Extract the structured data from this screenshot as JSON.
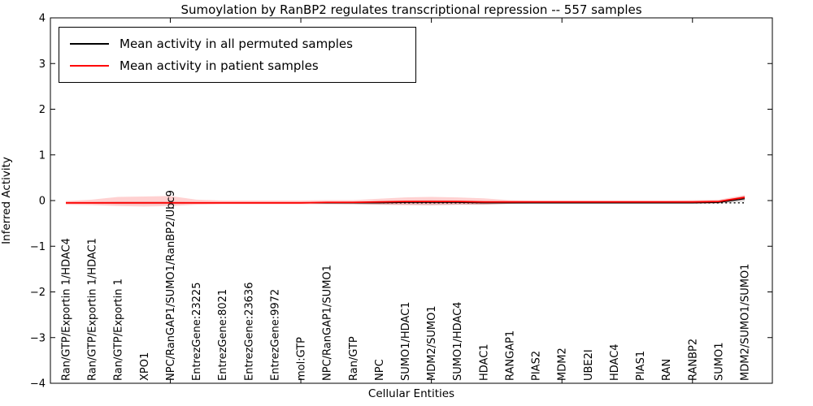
{
  "title": "Sumoylation by RanBP2 regulates transcriptional repression -- 557 samples",
  "legend": {
    "items": [
      {
        "label": "Mean activity in all permuted samples",
        "color": "#000000"
      },
      {
        "label": "Mean activity in patient samples",
        "color": "#ff0000"
      }
    ]
  },
  "axes": {
    "xlabel": "Cellular Entities",
    "ylabel": "Inferred Activity",
    "ylim": [
      -4,
      4
    ],
    "ytick_values": [
      4,
      3,
      2,
      1,
      0,
      -1,
      -2,
      -3,
      -4
    ],
    "ytick_labels": [
      "4",
      "3",
      "2",
      "1",
      "0",
      "−1",
      "−2",
      "−3",
      "−4"
    ],
    "grid": false
  },
  "chart_data": {
    "type": "line",
    "title": "Sumoylation by RanBP2 regulates transcriptional repression -- 557 samples",
    "xlabel": "Cellular Entities",
    "ylabel": "Inferred Activity",
    "ylim": [
      -4,
      4
    ],
    "legend_position": "upper left",
    "x_major_tick_indices": [
      4,
      9,
      14,
      19,
      24
    ],
    "categories": [
      "Ran/GTP/Exportin 1/HDAC4",
      "Ran/GTP/Exportin 1/HDAC1",
      "Ran/GTP/Exportin 1",
      "XPO1",
      "NPC/RanGAP1/SUMO1/RanBP2/Ubc9",
      "EntrezGene:23225",
      "EntrezGene:8021",
      "EntrezGene:23636",
      "EntrezGene:9972",
      "mol:GTP",
      "NPC/RanGAP1/SUMO1",
      "Ran/GTP",
      "NPC",
      "SUMO1/HDAC1",
      "MDM2/SUMO1",
      "SUMO1/HDAC4",
      "HDAC1",
      "RANGAP1",
      "PIAS2",
      "MDM2",
      "UBE2I",
      "HDAC4",
      "PIAS1",
      "RAN",
      "RANBP2",
      "SUMO1",
      "MDM2/SUMO1/SUMO1"
    ],
    "reference_line": {
      "value": -0.05,
      "style": "dotted",
      "color": "#000000"
    },
    "series": [
      {
        "name": "Mean activity in all permuted samples",
        "color": "#000000",
        "line_width": 1.3,
        "band_color": "#999999",
        "band_opacity": 0.35,
        "values": [
          -0.05,
          -0.05,
          -0.05,
          -0.05,
          -0.05,
          -0.05,
          -0.05,
          -0.05,
          -0.05,
          -0.05,
          -0.05,
          -0.05,
          -0.05,
          -0.04,
          -0.04,
          -0.04,
          -0.05,
          -0.05,
          -0.05,
          -0.05,
          -0.05,
          -0.05,
          -0.05,
          -0.05,
          -0.05,
          -0.04,
          0.04
        ],
        "band_upper": [
          -0.03,
          -0.03,
          -0.02,
          -0.02,
          -0.02,
          -0.03,
          -0.03,
          -0.03,
          -0.03,
          -0.03,
          -0.03,
          -0.02,
          -0.01,
          0.0,
          0.01,
          0.0,
          -0.01,
          -0.03,
          -0.03,
          -0.03,
          -0.03,
          -0.03,
          -0.03,
          -0.03,
          -0.03,
          -0.01,
          0.1
        ],
        "band_lower": [
          -0.07,
          -0.07,
          -0.08,
          -0.08,
          -0.08,
          -0.07,
          -0.07,
          -0.07,
          -0.07,
          -0.07,
          -0.07,
          -0.08,
          -0.09,
          -0.09,
          -0.1,
          -0.09,
          -0.09,
          -0.07,
          -0.07,
          -0.07,
          -0.07,
          -0.07,
          -0.07,
          -0.07,
          -0.07,
          -0.07,
          -0.02
        ]
      },
      {
        "name": "Mean activity in patient samples",
        "color": "#ff0000",
        "line_width": 1.8,
        "band_color": "#ff6666",
        "band_opacity": 0.3,
        "values": [
          -0.05,
          -0.05,
          -0.05,
          -0.05,
          -0.05,
          -0.05,
          -0.05,
          -0.05,
          -0.05,
          -0.05,
          -0.04,
          -0.04,
          -0.03,
          -0.02,
          -0.02,
          -0.02,
          -0.03,
          -0.03,
          -0.03,
          -0.03,
          -0.03,
          -0.03,
          -0.03,
          -0.03,
          -0.03,
          -0.02,
          0.07
        ],
        "band_upper": [
          -0.01,
          0.02,
          0.08,
          0.09,
          0.1,
          0.02,
          0.0,
          0.0,
          0.0,
          0.0,
          0.01,
          0.01,
          0.04,
          0.07,
          0.08,
          0.07,
          0.05,
          0.01,
          0.0,
          0.0,
          0.0,
          0.0,
          0.0,
          0.0,
          0.01,
          0.02,
          0.12
        ],
        "band_lower": [
          -0.09,
          -0.1,
          -0.12,
          -0.13,
          -0.12,
          -0.09,
          -0.08,
          -0.08,
          -0.08,
          -0.08,
          -0.08,
          -0.08,
          -0.09,
          -0.1,
          -0.1,
          -0.09,
          -0.09,
          -0.07,
          -0.06,
          -0.06,
          -0.06,
          -0.06,
          -0.06,
          -0.06,
          -0.06,
          -0.06,
          0.02
        ]
      }
    ]
  }
}
